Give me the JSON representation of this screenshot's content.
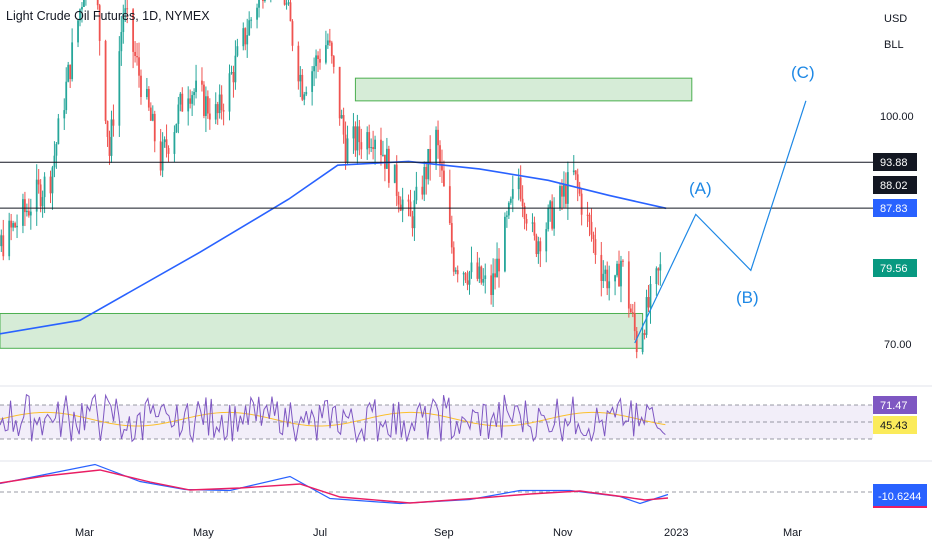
{
  "title": "Light Crude Oil Futures, 1D, NYMEX",
  "currency": "USD",
  "unit": "BLL",
  "colors": {
    "up": "#26a69a",
    "down": "#ef5350",
    "ma": "#2962ff",
    "rsi": "#7e57c2",
    "rsi_ma": "#fbc02d",
    "macd": "#2962ff",
    "signal": "#e91e63",
    "zone_fill": "#c8e6c9",
    "zone_border": "#4caf50",
    "wave": "#1e88e5",
    "current": "#089981"
  },
  "chart_data": {
    "type": "candlestick",
    "x_ticks": [
      "Mar",
      "May",
      "Jul",
      "Sep",
      "Nov",
      "2023",
      "Mar"
    ],
    "y_ticks": [
      "100.00",
      "70.00"
    ],
    "price_labels": {
      "level1": "93.88",
      "level2": "88.02",
      "level3": "87.83",
      "current": "79.56"
    },
    "horizontal_lines": [
      93.88,
      87.83
    ],
    "zones": [
      {
        "from": 102,
        "to": 105
      },
      {
        "from": 69.3,
        "to": 73.9
      }
    ],
    "wave_labels": [
      "(A)",
      "(B)",
      "(C)"
    ],
    "wave_path": [
      {
        "date": "2022-12-08",
        "price": 70.0
      },
      {
        "date": "2023-01-08",
        "price": 87.0
      },
      {
        "date": "2023-02-05",
        "price": 79.6
      },
      {
        "date": "2023-03-05",
        "price": 102.0
      }
    ],
    "rsi": {
      "value": "71.47",
      "ma_value": "45.43"
    },
    "macd": {
      "value": "-10.6244"
    }
  }
}
